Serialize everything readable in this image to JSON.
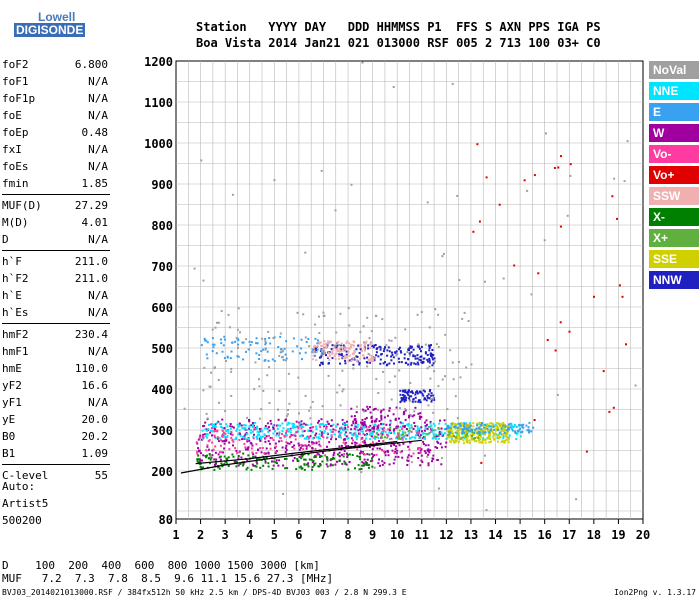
{
  "logo": {
    "line1": "Lowell",
    "line2": "DIGISONDE"
  },
  "header": {
    "row1": "Station   YYYY DAY   DDD HHMMSS P1  FFS S AXN PPS IGA PS",
    "row2": "Boa Vista 2014 Jan21 021 013000 RSF 005 2 713 100 03+ C0"
  },
  "params": [
    {
      "label": "foF2",
      "value": "6.800"
    },
    {
      "label": "foF1",
      "value": "N/A"
    },
    {
      "label": "foF1p",
      "value": "N/A"
    },
    {
      "label": "foE",
      "value": "N/A"
    },
    {
      "label": "foEp",
      "value": "0.48"
    },
    {
      "label": "fxI",
      "value": "N/A"
    },
    {
      "label": "foEs",
      "value": "N/A"
    },
    {
      "label": "fmin",
      "value": "1.85"
    },
    {
      "label": "MUF(D)",
      "value": "27.29"
    },
    {
      "label": "M(D)",
      "value": "4.01"
    },
    {
      "label": "D",
      "value": "N/A"
    },
    {
      "label": "h`F",
      "value": "211.0"
    },
    {
      "label": "h`F2",
      "value": "211.0"
    },
    {
      "label": "h`E",
      "value": "N/A"
    },
    {
      "label": "h`Es",
      "value": "N/A"
    },
    {
      "label": "hmF2",
      "value": "230.4"
    },
    {
      "label": "hmF1",
      "value": "N/A"
    },
    {
      "label": "hmE",
      "value": "110.0"
    },
    {
      "label": "yF2",
      "value": "16.6"
    },
    {
      "label": "yF1",
      "value": "N/A"
    },
    {
      "label": "yE",
      "value": "20.0"
    },
    {
      "label": "B0",
      "value": "20.2"
    },
    {
      "label": "B1",
      "value": "1.09"
    },
    {
      "label": "C-level",
      "value": "55"
    }
  ],
  "auto": {
    "line1": "Auto:",
    "line2": "Artist5",
    "line3": "500200"
  },
  "legend": [
    {
      "label": "NoVal",
      "color": "#a0a0a0"
    },
    {
      "label": "NNE",
      "color": "#00e5ff"
    },
    {
      "label": "E",
      "color": "#3aa0f0"
    },
    {
      "label": "W",
      "color": "#a000a0"
    },
    {
      "label": "Vo-",
      "color": "#ff3aa0"
    },
    {
      "label": "Vo+",
      "color": "#e00000"
    },
    {
      "label": "SSW",
      "color": "#f0b0b0"
    },
    {
      "label": "X-",
      "color": "#008000"
    },
    {
      "label": "X+",
      "color": "#60b040"
    },
    {
      "label": "SSE",
      "color": "#d0d000"
    },
    {
      "label": "NNW",
      "color": "#2020c0"
    }
  ],
  "chart_data": {
    "type": "scatter",
    "xlim": [
      1,
      20
    ],
    "ylim": [
      80,
      1200
    ],
    "xticks": [
      "1",
      "2",
      "3",
      "4",
      "5",
      "6",
      "7",
      "8",
      "9",
      "10",
      "11",
      "12",
      "13",
      "14",
      "15",
      "16",
      "17",
      "18",
      "19",
      "20"
    ],
    "yticks": [
      "80",
      "200",
      "300",
      "400",
      "500",
      "600",
      "700",
      "800",
      "900",
      "1000",
      "1100",
      "1200"
    ],
    "grid": true,
    "clusters": [
      {
        "color": "#a000a0",
        "xmin": 1.8,
        "xmax": 12.0,
        "ymin": 215,
        "ymax": 330,
        "n": 520
      },
      {
        "color": "#00e5ff",
        "xmin": 2.0,
        "xmax": 15.0,
        "ymin": 280,
        "ymax": 320,
        "n": 420
      },
      {
        "color": "#ff3aa0",
        "xmin": 1.8,
        "xmax": 11.0,
        "ymin": 240,
        "ymax": 310,
        "n": 160
      },
      {
        "color": "#2020c0",
        "xmin": 6.5,
        "xmax": 11.5,
        "ymin": 460,
        "ymax": 510,
        "n": 200
      },
      {
        "color": "#f0b0b0",
        "xmin": 6.5,
        "xmax": 9.0,
        "ymin": 470,
        "ymax": 520,
        "n": 140
      },
      {
        "color": "#3aa0f0",
        "xmin": 2.0,
        "xmax": 7.0,
        "ymin": 470,
        "ymax": 530,
        "n": 90
      },
      {
        "color": "#2020c0",
        "xmin": 10.0,
        "xmax": 11.5,
        "ymin": 370,
        "ymax": 400,
        "n": 80
      },
      {
        "color": "#d0d000",
        "xmin": 12.0,
        "xmax": 14.5,
        "ymin": 270,
        "ymax": 320,
        "n": 260
      },
      {
        "color": "#008000",
        "xmin": 1.8,
        "xmax": 9.0,
        "ymin": 205,
        "ymax": 245,
        "n": 160
      },
      {
        "color": "#60b040",
        "xmin": 9.0,
        "xmax": 13.5,
        "ymin": 280,
        "ymax": 310,
        "n": 60
      },
      {
        "color": "#3aa0f0",
        "xmin": 12.0,
        "xmax": 15.5,
        "ymin": 295,
        "ymax": 320,
        "n": 90
      },
      {
        "color": "#a000a0",
        "xmin": 8.0,
        "xmax": 11.0,
        "ymin": 300,
        "ymax": 360,
        "n": 80
      },
      {
        "color": "#a0a0a0",
        "xmin": 2.0,
        "xmax": 13.0,
        "ymin": 330,
        "ymax": 600,
        "n": 160
      },
      {
        "color": "#e00000",
        "xmin": 13.0,
        "xmax": 19.5,
        "ymin": 200,
        "ymax": 1000,
        "n": 30
      },
      {
        "color": "#a0a0a0",
        "xmin": 1.0,
        "xmax": 20.0,
        "ymin": 100,
        "ymax": 1200,
        "n": 50
      }
    ],
    "traces": [
      {
        "color": "#000000",
        "points": [
          [
            1.2,
            195
          ],
          [
            3,
            215
          ],
          [
            5,
            232
          ],
          [
            7,
            248
          ],
          [
            9,
            262
          ],
          [
            11,
            275
          ]
        ]
      },
      {
        "color": "#000000",
        "points": [
          [
            1.8,
            218
          ],
          [
            4,
            230
          ],
          [
            6,
            245
          ],
          [
            8,
            258
          ],
          [
            10,
            272
          ]
        ]
      }
    ]
  },
  "muf_table": {
    "row1": "D    100  200  400  600  800 1000 1500 3000 [km]",
    "row2": "MUF   7.2  7.3  7.8  8.5  9.6 11.1 15.6 27.3 [MHz]"
  },
  "footer": "BVJ03_2014021013000.RSF / 384fx512h 50 kHz 2.5 km / DPS-4D BVJ03 003 / 2.8 N 299.3 E",
  "version": "Ion2Png v. 1.3.17"
}
